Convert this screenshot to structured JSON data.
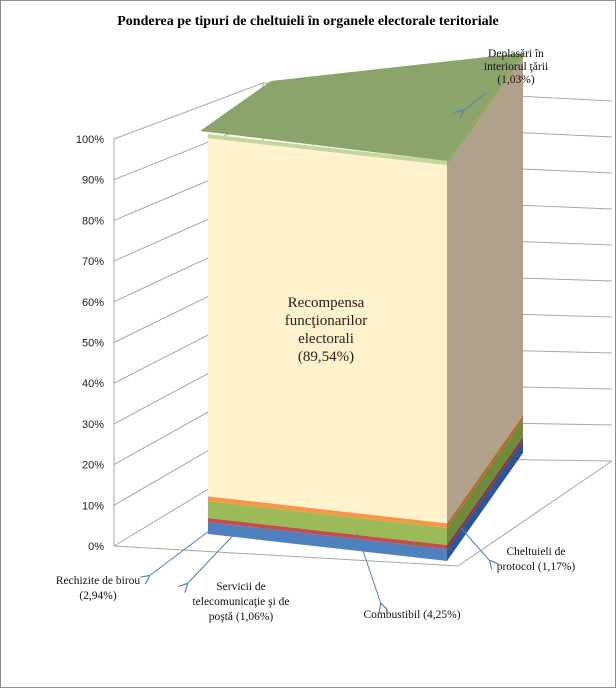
{
  "chart_data": {
    "type": "bar",
    "title": "Ponderea pe tipuri  de cheltuieli în organele electorale teritoriale",
    "ylim": [
      0,
      100
    ],
    "y_ticks": [
      "0%",
      "10%",
      "20%",
      "30%",
      "40%",
      "50%",
      "60%",
      "70%",
      "80%",
      "90%",
      "100%"
    ],
    "grid": true,
    "stacked_percent": true,
    "series": [
      {
        "label": "Rechizite  de birou (2,94%)",
        "value": 2.94,
        "color": "#4f81bd",
        "side": "#2f5597"
      },
      {
        "label": "Servicii  de telecomunicaţie şi de poştă (1,06%)",
        "value": 1.06,
        "color": "#c0504d",
        "side": "#8e3432"
      },
      {
        "label": "Combustibil  (4,25%)",
        "value": 4.25,
        "color": "#9bbb59",
        "side": "#6e8a3a"
      },
      {
        "label": "Cheltuieli  de protocol (1,17%)",
        "value": 1.17,
        "color": "#f79646",
        "side": "#b76a29"
      },
      {
        "label": "Recompensa funcţionarilor electorali (89,54%)",
        "value": 89.54,
        "color": "#fff2cc",
        "side": "#b0a28a"
      },
      {
        "label": "Deplasări în interiorul ţării (1,03%)",
        "value": 1.03,
        "color": "#c3d69b",
        "side": "#8ea460"
      }
    ],
    "label_lines": [
      [
        "Rechizite  de birou",
        "(2,94%)"
      ],
      [
        "Servicii  de",
        "telecomunicaţie şi de",
        "poştă (1,06%)"
      ],
      [
        "Combustibil  (4,25%)"
      ],
      [
        "Cheltuieli  de",
        "protocol (1,17%)"
      ],
      [
        "Recompensa",
        "funcţionarilor",
        "electorali",
        "(89,54%)"
      ],
      [
        "Deplasări în",
        "interiorul ţării",
        "(1,03%)"
      ]
    ],
    "top_color": "#8aa46b",
    "arrow_color": "#4f81bd"
  }
}
